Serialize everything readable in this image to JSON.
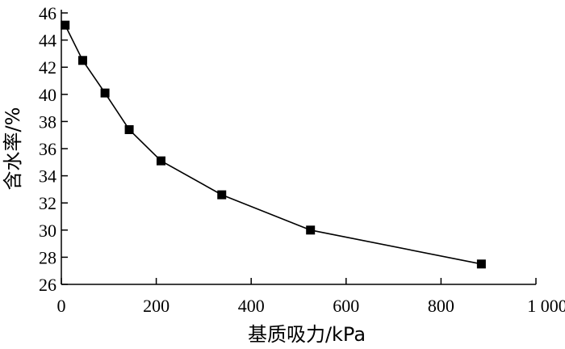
{
  "chart_data": {
    "type": "line",
    "xlabel": "基质吸力/kPa",
    "ylabel": "含水率/%",
    "xlim": [
      0,
      1000
    ],
    "ylim": [
      26,
      46
    ],
    "xticks": [
      0,
      200,
      400,
      600,
      800,
      1000
    ],
    "xtick_labels": [
      "0",
      "200",
      "400",
      "600",
      "800",
      "1 000"
    ],
    "yticks": [
      26,
      28,
      30,
      32,
      34,
      36,
      38,
      40,
      42,
      44,
      46
    ],
    "yticks_labels": [
      "26",
      "28",
      "30",
      "32",
      "34",
      "36",
      "38",
      "40",
      "42",
      "44",
      "46"
    ],
    "grid": false,
    "series": [
      {
        "marker": "square",
        "color": "#000000",
        "x": [
          8,
          45,
          92,
          143,
          210,
          338,
          525,
          885
        ],
        "y": [
          45.1,
          42.5,
          40.1,
          37.4,
          35.1,
          32.6,
          30.0,
          27.5
        ]
      }
    ]
  }
}
